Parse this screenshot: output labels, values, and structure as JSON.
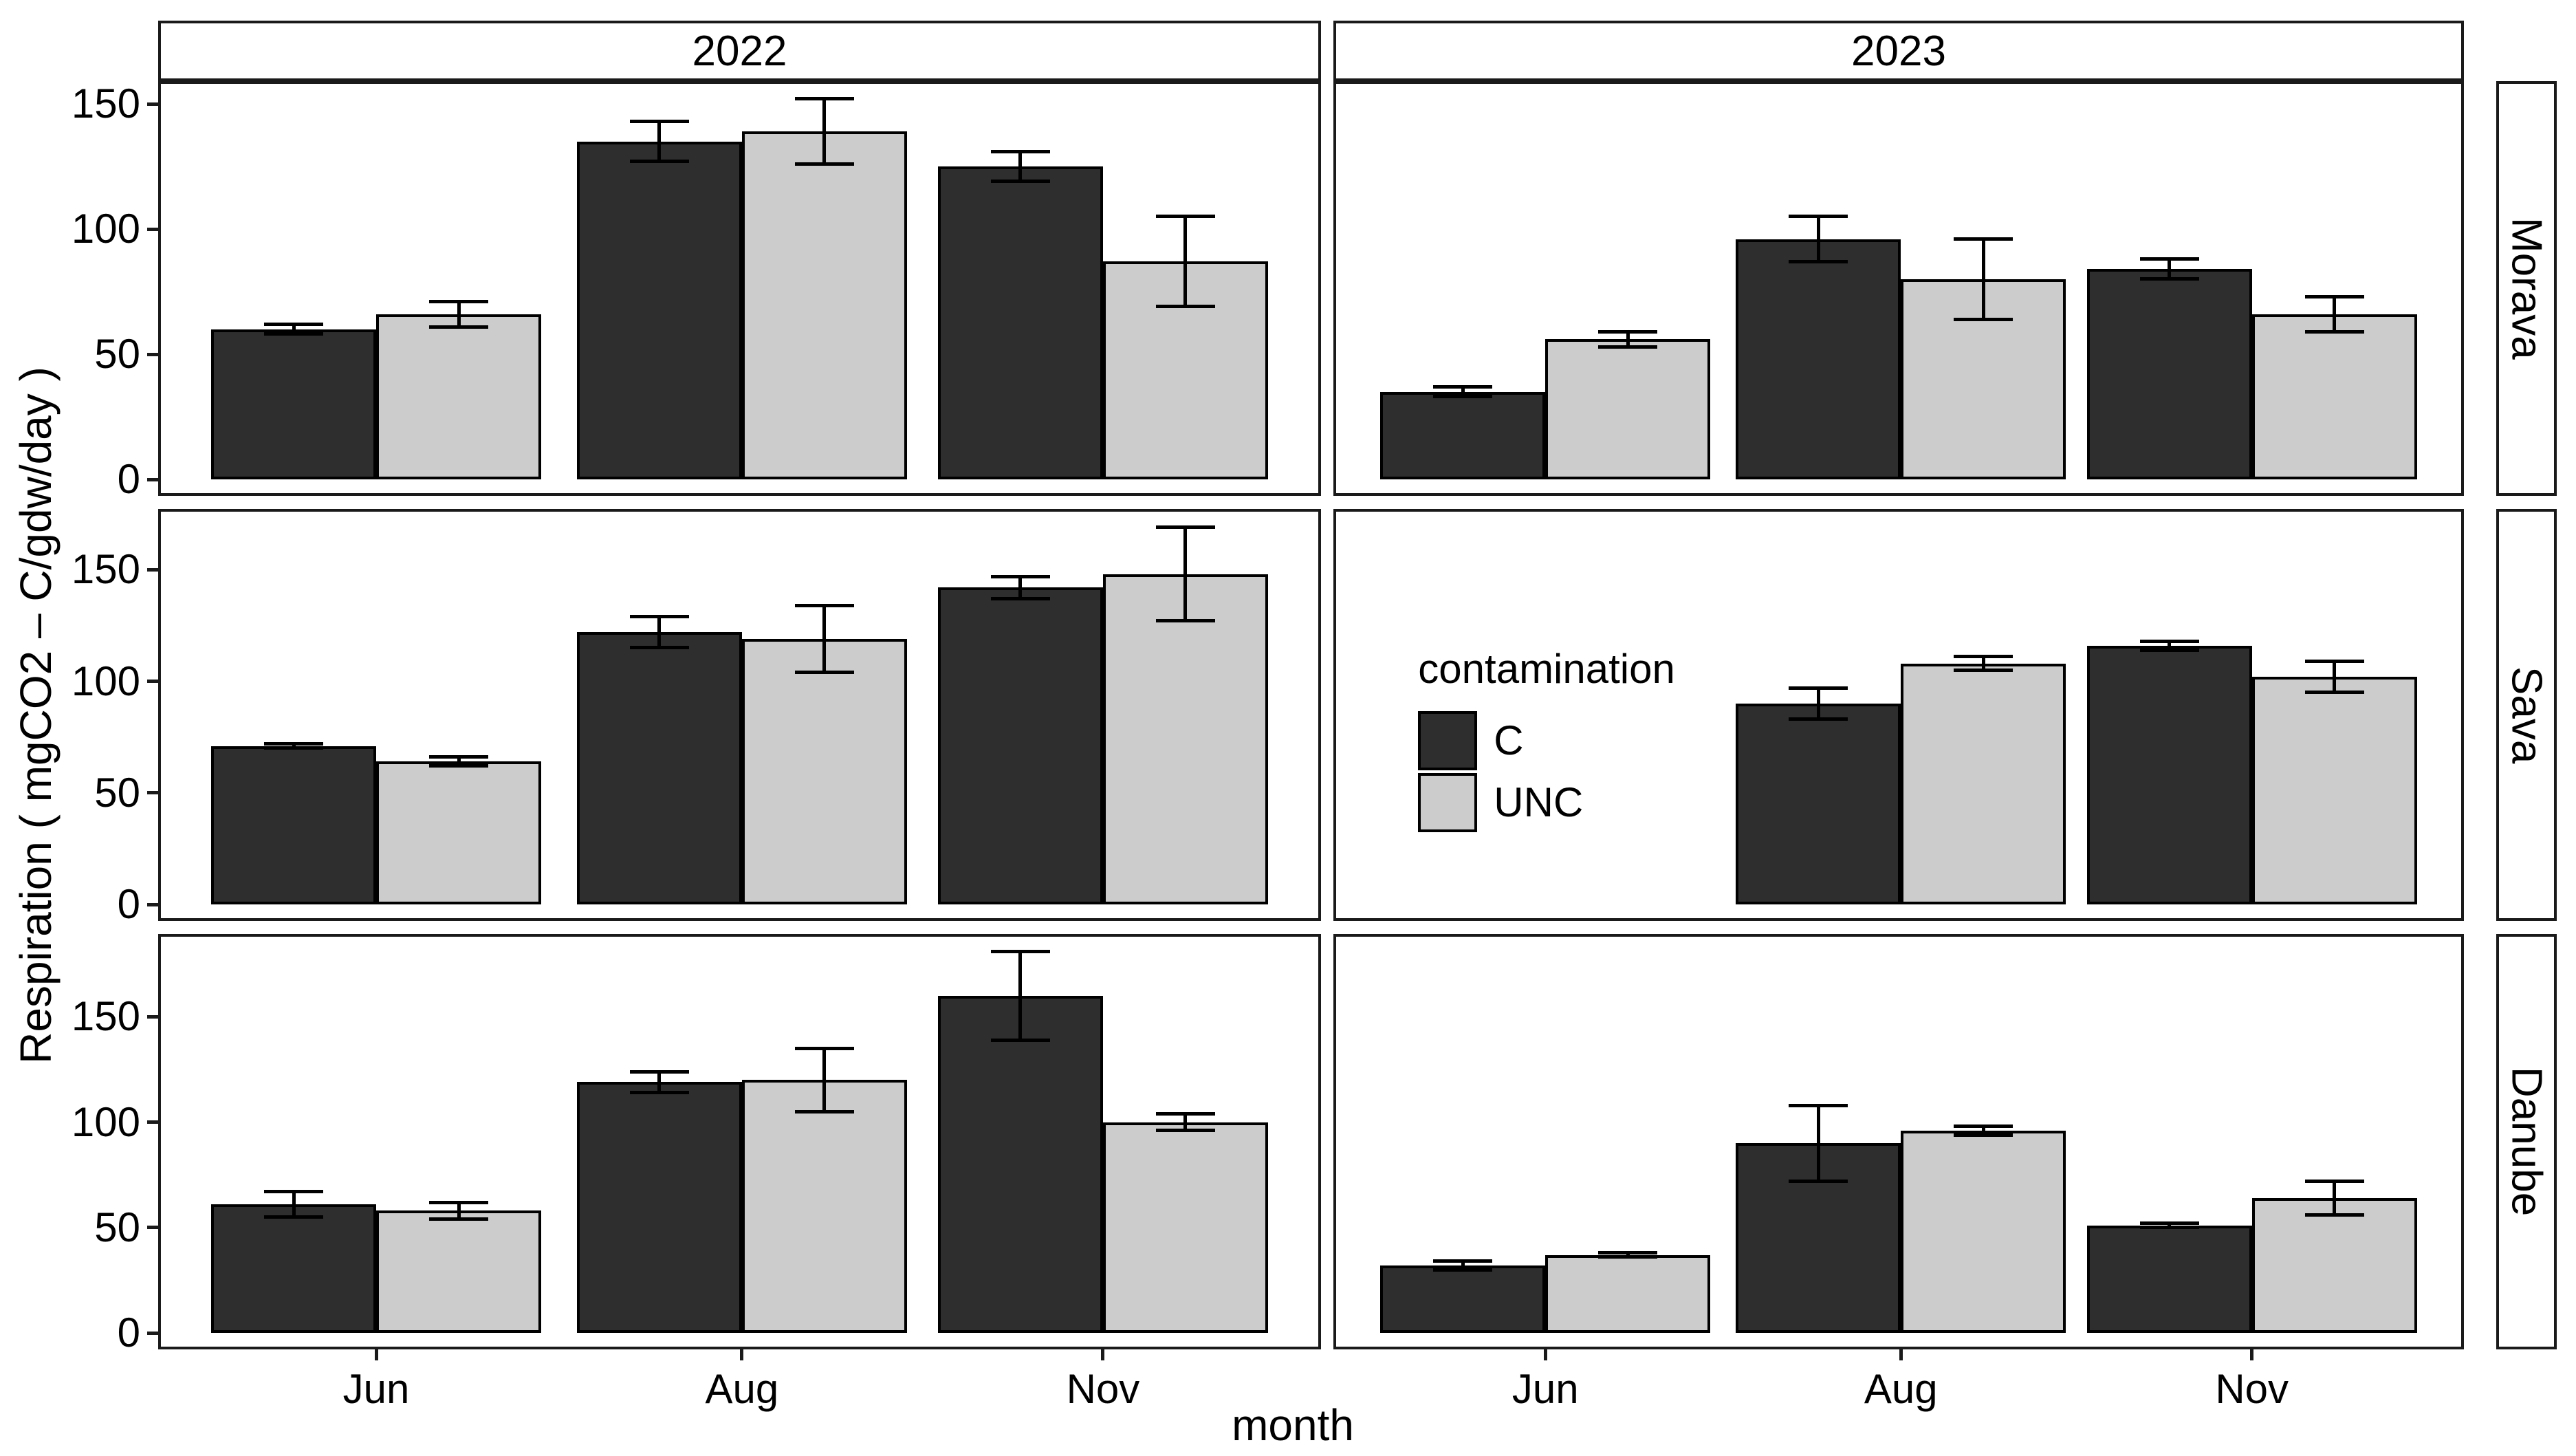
{
  "chart_data": {
    "type": "bar",
    "title": "",
    "xlabel": "month",
    "ylabel": "Respiration ( mgCO2 – C/gdw/day )",
    "grid": false,
    "y_ticks": [
      0,
      50,
      100,
      150
    ],
    "row_ymax": [
      158,
      176,
      188
    ],
    "facet_cols": [
      "2022",
      "2023"
    ],
    "facet_rows": [
      "Morava",
      "Sava",
      "Danube"
    ],
    "categories": [
      "Jun",
      "Aug",
      "Nov"
    ],
    "legend": {
      "title": "contamination",
      "position": "inside Sava-2023 panel",
      "entries": [
        {
          "label": "C",
          "color": "#2e2e2e"
        },
        {
          "label": "UNC",
          "color": "#cccccc"
        }
      ]
    },
    "panels": [
      {
        "row": "Morava",
        "col": "2022",
        "series": [
          {
            "name": "C",
            "values": [
              60,
              135,
              125
            ],
            "errors": [
              2,
              8,
              6
            ]
          },
          {
            "name": "UNC",
            "values": [
              66,
              139,
              87
            ],
            "errors": [
              5,
              13,
              18
            ]
          }
        ]
      },
      {
        "row": "Morava",
        "col": "2023",
        "series": [
          {
            "name": "C",
            "values": [
              35,
              96,
              84
            ],
            "errors": [
              2,
              9,
              4
            ]
          },
          {
            "name": "UNC",
            "values": [
              56,
              80,
              66
            ],
            "errors": [
              3,
              16,
              7
            ]
          }
        ]
      },
      {
        "row": "Sava",
        "col": "2022",
        "series": [
          {
            "name": "C",
            "values": [
              71,
              122,
              142
            ],
            "errors": [
              1,
              7,
              5
            ]
          },
          {
            "name": "UNC",
            "values": [
              64,
              119,
              148
            ],
            "errors": [
              2,
              15,
              21
            ]
          }
        ]
      },
      {
        "row": "Sava",
        "col": "2023",
        "series": [
          {
            "name": "C",
            "values": [
              null,
              90,
              116
            ],
            "errors": [
              null,
              7,
              2
            ]
          },
          {
            "name": "UNC",
            "values": [
              null,
              108,
              102
            ],
            "errors": [
              null,
              3,
              7
            ]
          }
        ]
      },
      {
        "row": "Danube",
        "col": "2022",
        "series": [
          {
            "name": "C",
            "values": [
              61,
              119,
              160
            ],
            "errors": [
              6,
              5,
              21
            ]
          },
          {
            "name": "UNC",
            "values": [
              58,
              120,
              100
            ],
            "errors": [
              4,
              15,
              4
            ]
          }
        ]
      },
      {
        "row": "Danube",
        "col": "2023",
        "series": [
          {
            "name": "C",
            "values": [
              32,
              90,
              51
            ],
            "errors": [
              2,
              18,
              1
            ]
          },
          {
            "name": "UNC",
            "values": [
              37,
              96,
              64
            ],
            "errors": [
              1,
              2,
              8
            ]
          }
        ]
      }
    ]
  },
  "axis": {
    "y_title": "Respiration ( mgCO2 – C/gdw/day )",
    "x_title": "month"
  }
}
